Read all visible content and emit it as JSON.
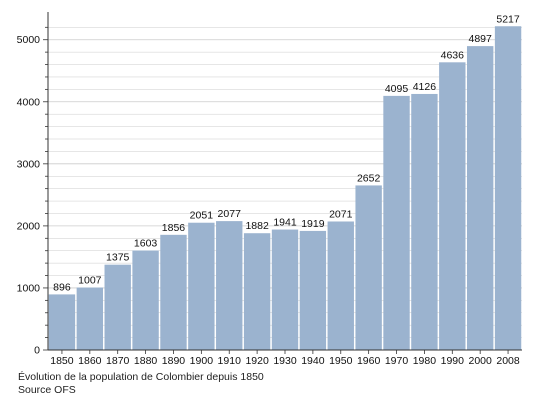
{
  "chart_data": {
    "type": "bar",
    "categories": [
      "1850",
      "1860",
      "1870",
      "1880",
      "1890",
      "1900",
      "1910",
      "1920",
      "1930",
      "1940",
      "1950",
      "1960",
      "1970",
      "1980",
      "1990",
      "2000",
      "2008"
    ],
    "values": [
      896,
      1007,
      1375,
      1603,
      1856,
      2051,
      2077,
      1882,
      1941,
      1919,
      2071,
      2652,
      4095,
      4126,
      4636,
      4897,
      5217
    ],
    "data_labels": [
      "896",
      "1007",
      "1375",
      "1603",
      "1856",
      "2051",
      "2077",
      "1882",
      "1941",
      "1919",
      "2071",
      "2652",
      "4095",
      "4126",
      "4636",
      "4897",
      "5217"
    ],
    "y_ticks": [
      0,
      1000,
      2000,
      3000,
      4000,
      5000
    ],
    "ylim": [
      0,
      5350
    ],
    "grid": true,
    "title": "",
    "xlabel": "",
    "ylabel": "",
    "bar_color": "#9bb3cf",
    "grid_color": "#cccccc"
  },
  "caption": {
    "line1": "Évolution de la population de Colombier depuis 1850",
    "line2": "Source OFS"
  }
}
